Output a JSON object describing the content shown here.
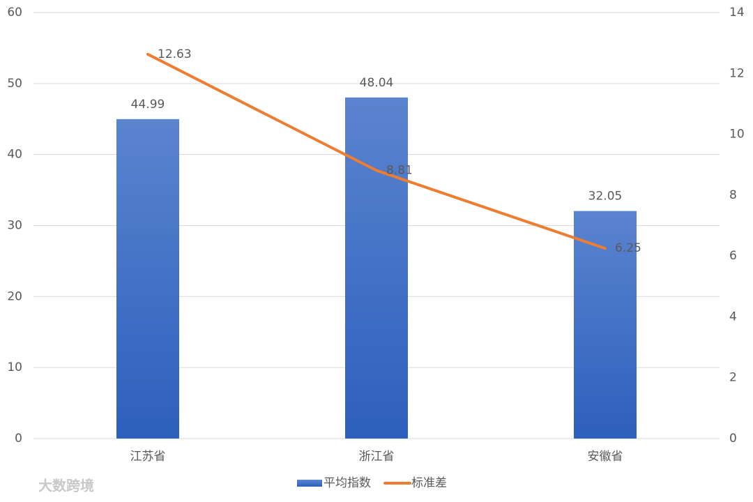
{
  "chart_data": {
    "type": "bar",
    "categories": [
      "江苏省",
      "浙江省",
      "安徽省"
    ],
    "series": [
      {
        "name": "平均指数",
        "color": "#4472c4",
        "values": [
          44.99,
          48.04,
          32.05
        ]
      },
      {
        "name": "标准差",
        "color": "#ed7d31",
        "type": "line",
        "axis": "y2",
        "values": [
          12.63,
          8.81,
          6.25
        ]
      }
    ],
    "ylim": [
      0,
      60
    ],
    "yticks": [
      0,
      10,
      20,
      30,
      40,
      50,
      60
    ],
    "y2lim": [
      0,
      14
    ],
    "y2ticks": [
      0,
      2,
      4,
      6,
      8,
      10,
      12,
      14
    ],
    "grid": true,
    "legend": "bottom",
    "watermark": "大数跨境"
  }
}
